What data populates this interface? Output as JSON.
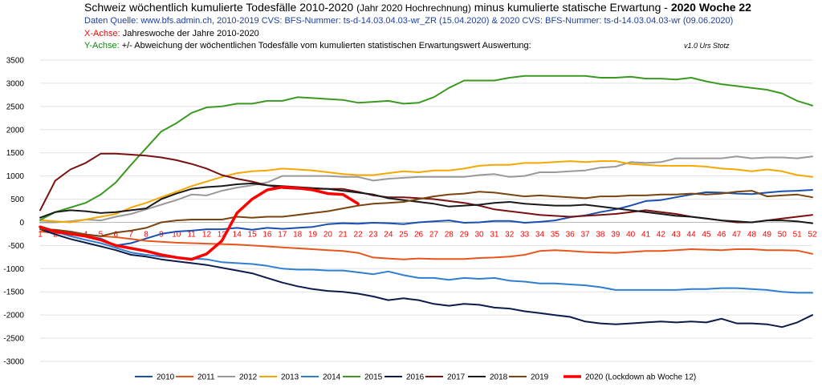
{
  "header": {
    "title_main": "Schweiz wöchentlich kumulierte Todesfälle 2010-2020",
    "title_paren": "(Jahr 2020 Hochrechnung)",
    "title_rest": "minus kumulierte statische Erwartung -",
    "title_bold": "2020  Woche  22",
    "source": "Daten Quelle: www.bfs.admin.ch,    2010-2019 CVS: BFS-Nummer: ts-d-14.03.04.03-wr_ZR (15.04.2020)   &   2020 CVS: BFS-Nummer: ts-d-14.03.04.03-wr (09.06.2020)",
    "xaxis_label": "X-Achse:",
    "xaxis_text": "Jahreswoche der Jahre 2010-2020",
    "yaxis_label": "Y-Achse:",
    "yaxis_text": "+/- Abweichung der wöchentlichen Todesfälle vom kumulierten statistischen Erwartungswert Auswertung:",
    "version": "v1.0 Urs Stotz"
  },
  "chart_data": {
    "type": "line",
    "ylim": [
      -3000,
      3500
    ],
    "y_ticks": [
      3500,
      3000,
      2500,
      2000,
      1500,
      1000,
      500,
      0,
      -500,
      -1000,
      -1500,
      -2000,
      -2500,
      -3000
    ],
    "x_ticks": [
      "1",
      "2",
      "3",
      "4",
      "5",
      "6",
      "7",
      "8",
      "9",
      "10",
      "11",
      "12",
      "13",
      "14",
      "15",
      "16",
      "17",
      "18",
      "19",
      "20",
      "21",
      "22",
      "23",
      "24",
      "25",
      "26",
      "27",
      "28",
      "29",
      "30",
      "31",
      "32",
      "33",
      "34",
      "35",
      "36",
      "37",
      "38",
      "39",
      "40",
      "41",
      "42",
      "43",
      "44",
      "45",
      "46",
      "47",
      "48",
      "49",
      "50",
      "51",
      "52"
    ],
    "grid": "horizontal",
    "legend_position": "bottom",
    "series": [
      {
        "name": "2010",
        "color": "#1a4fb0",
        "width": 2,
        "values": [
          -150,
          -200,
          -250,
          -300,
          -350,
          -500,
          -450,
          -350,
          -250,
          -200,
          -180,
          -150,
          -150,
          -120,
          -160,
          -120,
          -140,
          -120,
          -100,
          -40,
          -20,
          -30,
          -10,
          -20,
          -40,
          0,
          20,
          40,
          -10,
          0,
          30,
          30,
          -10,
          10,
          40,
          110,
          150,
          220,
          280,
          360,
          460,
          480,
          540,
          600,
          650,
          640,
          620,
          610,
          640,
          670,
          680,
          700
        ]
      },
      {
        "name": "2011",
        "color": "#e8561e",
        "width": 2,
        "values": [
          -200,
          -230,
          -260,
          -280,
          -300,
          -320,
          -360,
          -400,
          -420,
          -440,
          -450,
          -460,
          -470,
          -480,
          -500,
          -520,
          -540,
          -560,
          -580,
          -600,
          -620,
          -660,
          -760,
          -780,
          -800,
          -780,
          -790,
          -790,
          -790,
          -770,
          -760,
          -740,
          -700,
          -620,
          -600,
          -620,
          -640,
          -650,
          -660,
          -640,
          -620,
          -620,
          -600,
          -580,
          -590,
          -600,
          -580,
          -580,
          -600,
          -600,
          -610,
          -680
        ]
      },
      {
        "name": "2012",
        "color": "#999999",
        "width": 2,
        "values": [
          0,
          0,
          20,
          60,
          40,
          120,
          180,
          280,
          380,
          480,
          600,
          580,
          680,
          750,
          800,
          860,
          1000,
          1000,
          1000,
          1000,
          980,
          980,
          900,
          940,
          960,
          980,
          980,
          980,
          980,
          1020,
          1040,
          980,
          1000,
          1080,
          1080,
          1100,
          1120,
          1180,
          1200,
          1300,
          1280,
          1300,
          1380,
          1380,
          1380,
          1380,
          1420,
          1380,
          1400,
          1400,
          1380,
          1420
        ]
      },
      {
        "name": "2013",
        "color": "#f5a800",
        "width": 2,
        "values": [
          50,
          20,
          0,
          60,
          120,
          180,
          320,
          420,
          540,
          660,
          780,
          880,
          980,
          1060,
          1100,
          1120,
          1160,
          1140,
          1120,
          1080,
          1040,
          1020,
          1020,
          1060,
          1100,
          1080,
          1120,
          1120,
          1160,
          1220,
          1240,
          1240,
          1280,
          1280,
          1300,
          1320,
          1300,
          1320,
          1320,
          1260,
          1240,
          1220,
          1220,
          1220,
          1200,
          1160,
          1140,
          1100,
          1140,
          1100,
          1020,
          980
        ]
      },
      {
        "name": "2014",
        "color": "#2e7fd0",
        "width": 2,
        "values": [
          -100,
          -200,
          -300,
          -380,
          -450,
          -550,
          -650,
          -700,
          -740,
          -760,
          -780,
          -800,
          -860,
          -880,
          -900,
          -940,
          -1000,
          -1020,
          -1020,
          -1040,
          -1040,
          -1080,
          -1120,
          -1060,
          -1140,
          -1200,
          -1200,
          -1240,
          -1200,
          -1220,
          -1200,
          -1260,
          -1280,
          -1320,
          -1320,
          -1340,
          -1360,
          -1400,
          -1460,
          -1460,
          -1460,
          -1460,
          -1460,
          -1440,
          -1440,
          -1420,
          -1420,
          -1440,
          -1460,
          -1500,
          -1520,
          -1520
        ]
      },
      {
        "name": "2015",
        "color": "#3a9a20",
        "width": 2,
        "values": [
          50,
          220,
          320,
          420,
          600,
          860,
          1240,
          1600,
          1960,
          2140,
          2360,
          2480,
          2500,
          2560,
          2560,
          2620,
          2620,
          2700,
          2680,
          2660,
          2640,
          2580,
          2600,
          2620,
          2560,
          2580,
          2700,
          2900,
          3060,
          3060,
          3060,
          3120,
          3160,
          3160,
          3160,
          3160,
          3160,
          3120,
          3120,
          3140,
          3100,
          3100,
          3080,
          3120,
          3040,
          2980,
          2940,
          2900,
          2860,
          2780,
          2620,
          2520
        ]
      },
      {
        "name": "2016",
        "color": "#0d1b4a",
        "width": 2,
        "values": [
          -150,
          -260,
          -360,
          -440,
          -520,
          -600,
          -700,
          -740,
          -800,
          -840,
          -880,
          -920,
          -980,
          -1040,
          -1100,
          -1200,
          -1300,
          -1380,
          -1440,
          -1480,
          -1500,
          -1540,
          -1600,
          -1680,
          -1640,
          -1680,
          -1760,
          -1800,
          -1760,
          -1780,
          -1840,
          -1860,
          -1920,
          -1960,
          -2000,
          -2040,
          -2140,
          -2180,
          -2200,
          -2180,
          -2160,
          -2140,
          -2160,
          -2140,
          -2160,
          -2080,
          -2180,
          -2180,
          -2200,
          -2260,
          -2160,
          -2000
        ]
      },
      {
        "name": "2017",
        "color": "#7a1010",
        "width": 2,
        "values": [
          260,
          900,
          1140,
          1280,
          1480,
          1480,
          1460,
          1440,
          1400,
          1340,
          1260,
          1160,
          1020,
          940,
          880,
          800,
          740,
          720,
          720,
          720,
          720,
          660,
          580,
          540,
          540,
          520,
          500,
          460,
          420,
          360,
          280,
          240,
          200,
          160,
          140,
          120,
          140,
          160,
          180,
          220,
          260,
          220,
          180,
          120,
          80,
          40,
          0,
          0,
          40,
          80,
          120,
          160
        ]
      },
      {
        "name": "2018",
        "color": "#1a1a1a",
        "width": 2,
        "values": [
          100,
          220,
          260,
          240,
          200,
          220,
          260,
          300,
          500,
          620,
          720,
          760,
          780,
          820,
          840,
          800,
          780,
          760,
          740,
          720,
          680,
          640,
          600,
          520,
          480,
          440,
          400,
          340,
          360,
          380,
          420,
          440,
          400,
          380,
          360,
          360,
          380,
          340,
          300,
          260,
          220,
          180,
          140,
          120,
          80,
          40,
          20,
          0,
          40,
          40,
          20,
          -20
        ]
      },
      {
        "name": "2019",
        "color": "#7a4410",
        "width": 2,
        "values": [
          -150,
          -160,
          -200,
          -260,
          -300,
          -220,
          -180,
          -120,
          0,
          40,
          60,
          60,
          60,
          120,
          100,
          120,
          120,
          160,
          200,
          240,
          300,
          360,
          400,
          420,
          440,
          500,
          560,
          600,
          620,
          660,
          640,
          600,
          560,
          580,
          560,
          540,
          520,
          560,
          560,
          580,
          580,
          600,
          600,
          620,
          600,
          620,
          660,
          680,
          560,
          580,
          600,
          540
        ]
      },
      {
        "name": "2020 (Lockdown ab Woche 12)",
        "color": "#ff0000",
        "width": 3.5,
        "values": [
          -100,
          -200,
          -250,
          -300,
          -380,
          -500,
          -560,
          -620,
          -700,
          -760,
          -800,
          -680,
          -400,
          200,
          500,
          700,
          760,
          740,
          700,
          620,
          600,
          400
        ]
      }
    ]
  }
}
